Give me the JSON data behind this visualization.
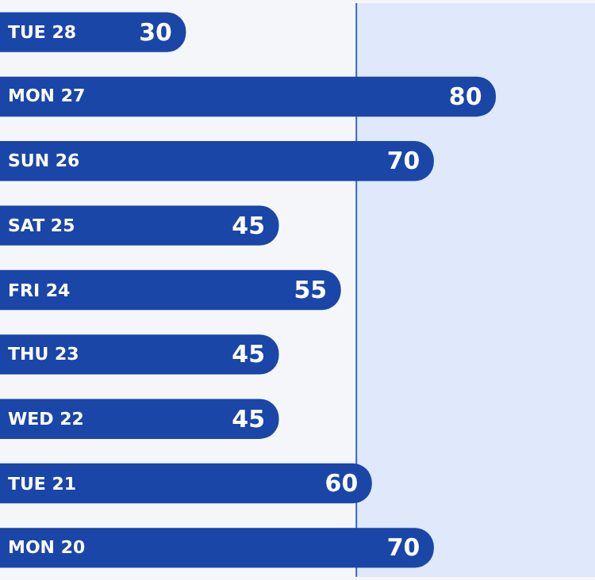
{
  "chart_data": {
    "type": "bar",
    "orientation": "horizontal",
    "categories": [
      "TUE 28",
      "MON 27",
      "SUN 26",
      "SAT 25",
      "FRI 24",
      "THU 23",
      "WED 22",
      "TUE 21",
      "MON 20"
    ],
    "values": [
      30,
      80,
      70,
      45,
      55,
      45,
      45,
      60,
      70
    ],
    "color": "#1a46a8",
    "data_labels": true,
    "tick_labels": false,
    "legend": false,
    "bands": [
      {
        "axis": "x",
        "from": 57.5,
        "to": 96,
        "color": "#dfe9fb"
      }
    ],
    "ref_lines": [
      {
        "axis": "x",
        "value": 57.5,
        "color": "#3b64c0"
      }
    ]
  }
}
